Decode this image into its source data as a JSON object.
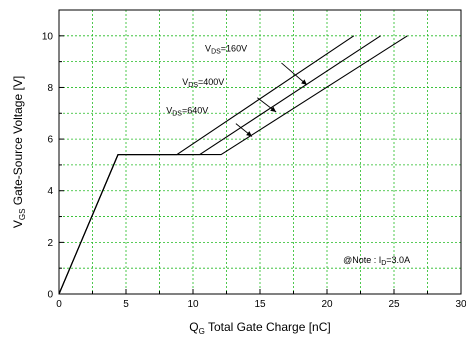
{
  "chart_data": {
    "type": "line",
    "xlabel_main": "Q",
    "xlabel_sub": "G",
    "xlabel_rest": " Total Gate Charge [nC]",
    "ylabel_main": "V",
    "ylabel_sub": "GS",
    "ylabel_rest": " Gate-Source Voltage [V]",
    "xlim": [
      0,
      30
    ],
    "ylim": [
      0,
      11
    ],
    "xticks": [
      0,
      5,
      10,
      15,
      20,
      25,
      30
    ],
    "yticks": [
      0,
      2,
      4,
      6,
      8,
      10
    ],
    "grid": true,
    "series": [
      {
        "label_main": "V",
        "label_sub": "DS",
        "label_rest": "=160V",
        "x": [
          0,
          4.4,
          8.8,
          22.0
        ],
        "y": [
          0,
          5.4,
          5.4,
          10.0
        ],
        "label_pos": [
          10.9,
          9.4
        ],
        "arrow_from": [
          16.6,
          8.95
        ],
        "arrow_to": [
          18.5,
          8.1
        ]
      },
      {
        "label_main": "V",
        "label_sub": "DS",
        "label_rest": "=400V",
        "x": [
          0,
          4.4,
          10.5,
          24.0
        ],
        "y": [
          0,
          5.4,
          5.4,
          10.0
        ],
        "label_pos": [
          9.2,
          8.1
        ],
        "arrow_from": [
          14.8,
          7.6
        ],
        "arrow_to": [
          16.2,
          7.05
        ]
      },
      {
        "label_main": "V",
        "label_sub": "DS",
        "label_rest": "=640V",
        "x": [
          0,
          4.4,
          12.1,
          26.0
        ],
        "y": [
          0,
          5.4,
          5.4,
          10.0
        ],
        "label_pos": [
          8.0,
          7.0
        ],
        "arrow_from": [
          13.2,
          6.6
        ],
        "arrow_to": [
          14.4,
          6.1
        ]
      }
    ],
    "note": {
      "prefix": "@Note : I",
      "sub": "D",
      "rest": "=3.0A",
      "pos": [
        21.2,
        1.2
      ]
    }
  }
}
